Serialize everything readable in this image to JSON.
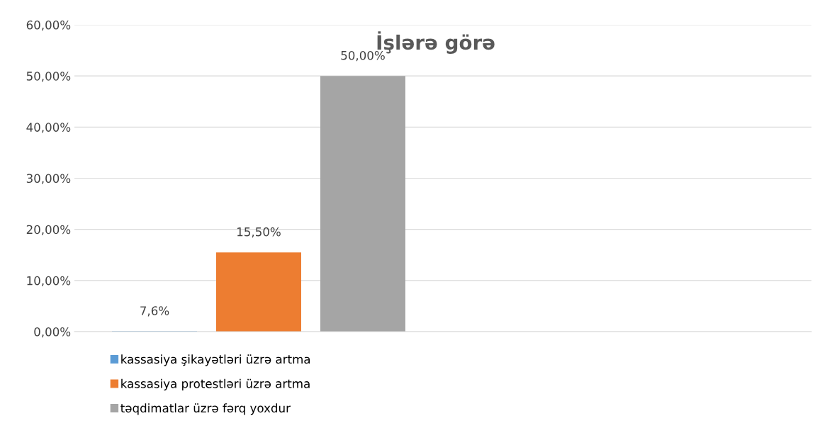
{
  "chart_data": {
    "type": "bar",
    "title": "İşlərə görə",
    "categories": [
      null,
      null
    ],
    "series": [
      {
        "name": "kassasiya şikayətləri üzrə artma",
        "color": "#5b9bd5",
        "values": [
          0.076,
          null
        ],
        "value_labels": [
          "7,6%",
          null
        ]
      },
      {
        "name": "kassasiya protestləri üzrə artma",
        "color": "#ed7d31",
        "values": [
          15.5,
          null
        ],
        "value_labels": [
          "15,50%",
          null
        ]
      },
      {
        "name": "təqdimatlar üzrə fərq yoxdur",
        "color": "#a5a5a5",
        "values": [
          50.0,
          null
        ],
        "value_labels": [
          "50,00%",
          null
        ]
      }
    ],
    "ylim": [
      0,
      60
    ],
    "yticks": [
      {
        "value": 0,
        "label": "0,00%"
      },
      {
        "value": 10,
        "label": "10,00%"
      },
      {
        "value": 20,
        "label": "20,00%"
      },
      {
        "value": 30,
        "label": "30,00%"
      },
      {
        "value": 40,
        "label": "40,00%"
      },
      {
        "value": 50,
        "label": "50,00%"
      },
      {
        "value": 60,
        "label": "60,00%"
      }
    ],
    "grid": "y",
    "legend": "bottom left"
  }
}
